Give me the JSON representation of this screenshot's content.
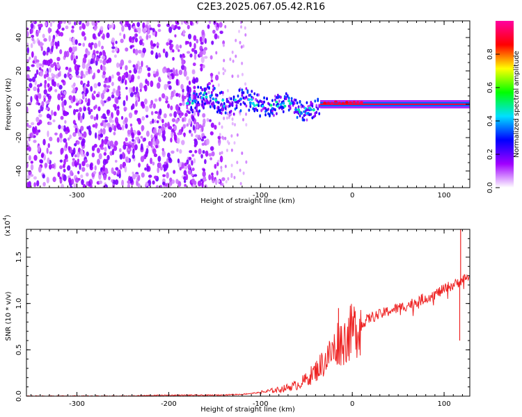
{
  "title": "C2E3.2025.067.05.42.R16",
  "chart_data": [
    {
      "type": "heatmap",
      "xlabel": "Height of straight line (km)",
      "ylabel": "Frequency (Hz)",
      "xlim": [
        -355,
        128
      ],
      "ylim": [
        -50,
        50
      ],
      "xticks": [
        -300,
        -200,
        -100,
        0,
        100
      ],
      "yticks": [
        -40,
        -20,
        0,
        20,
        40
      ],
      "colorbar": {
        "label": "Normalized spectral amplitude",
        "range": [
          0,
          1
        ],
        "ticks": [
          "0.0",
          "0.2",
          "0.4",
          "0.6",
          "0.8"
        ],
        "colors": [
          "#ffffff",
          "#a000ff",
          "#0000ff",
          "#00e0ff",
          "#00ff00",
          "#ffff00",
          "#ff0000",
          "#ff00a0"
        ]
      },
      "description_regions": [
        {
          "x_range": [
            -355,
            -140
          ],
          "freq_range": [
            -50,
            50
          ],
          "amplitude": 0.15
        },
        {
          "x_range": [
            -180,
            -35
          ],
          "freq_range": [
            -12,
            12
          ],
          "amplitude": 0.35
        },
        {
          "x_range": [
            -35,
            128
          ],
          "freq_range": [
            -2,
            2
          ],
          "amplitude": 0.9
        }
      ]
    },
    {
      "type": "line",
      "xlabel": "Height of straight line (km)",
      "ylabel": "SNR (10 * v/v)",
      "y_multiplier": "(x10",
      "y_multiplier_exp": "4",
      "y_multiplier_close": ")",
      "xlim": [
        -355,
        128
      ],
      "ylim": [
        0,
        1.8
      ],
      "xticks": [
        -300,
        -200,
        -100,
        0,
        100
      ],
      "yticks": [
        "0.0",
        "0.5",
        "1.0",
        "1.5"
      ],
      "ytick_values": [
        0,
        0.5,
        1.0,
        1.5
      ],
      "color": "#ee2222",
      "series": [
        {
          "x": [
            -355,
            -300,
            -250,
            -200,
            -150,
            -120,
            -100,
            -80,
            -60,
            -50,
            -40,
            -30,
            -20,
            -15,
            -10,
            -5,
            0,
            10,
            20,
            30,
            40,
            50,
            60,
            70,
            80,
            90,
            100,
            105,
            110,
            115,
            118,
            120,
            125,
            128
          ],
          "y": [
            0.0,
            0.0,
            0.0,
            0.01,
            0.01,
            0.02,
            0.04,
            0.07,
            0.12,
            0.18,
            0.27,
            0.38,
            0.5,
            0.6,
            0.58,
            0.65,
            0.7,
            0.78,
            0.85,
            0.88,
            0.92,
            0.95,
            0.98,
            1.02,
            1.06,
            1.1,
            1.15,
            1.18,
            1.2,
            1.22,
            1.25,
            1.25,
            1.28,
            1.3
          ]
        }
      ],
      "spikes": [
        {
          "x": -15,
          "y": 0.95
        },
        {
          "x": -5,
          "y": 0.75
        },
        {
          "x": 118,
          "y": 1.8
        },
        {
          "x": 117,
          "y": 0.6
        }
      ]
    }
  ]
}
